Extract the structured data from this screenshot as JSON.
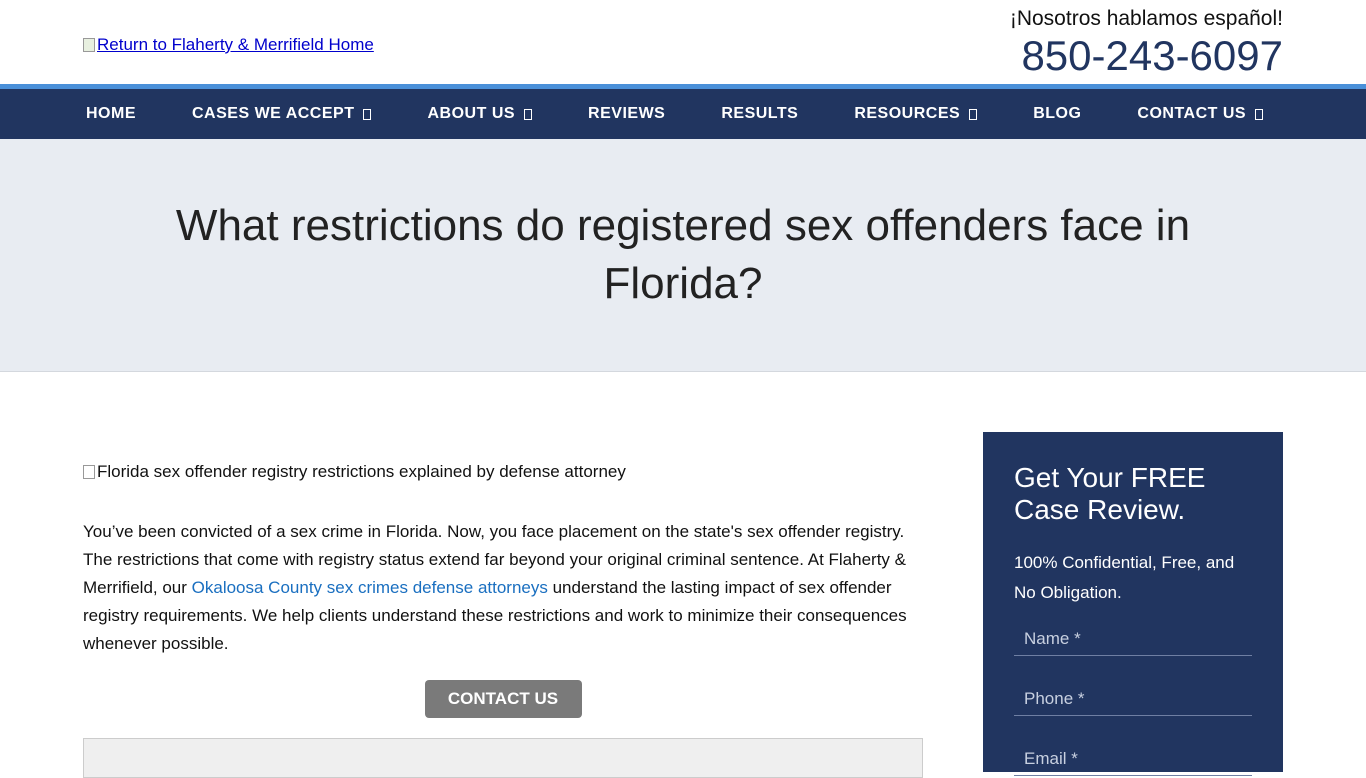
{
  "header": {
    "logo_alt": "Return to Flaherty & Merrifield Home",
    "spanish": "¡Nosotros hablamos español!",
    "phone": "850-243-6097"
  },
  "nav": [
    {
      "label": "HOME",
      "dropdown": false
    },
    {
      "label": "CASES WE ACCEPT",
      "dropdown": true
    },
    {
      "label": "ABOUT US",
      "dropdown": true
    },
    {
      "label": "REVIEWS",
      "dropdown": false
    },
    {
      "label": "RESULTS",
      "dropdown": false
    },
    {
      "label": "RESOURCES",
      "dropdown": true
    },
    {
      "label": "BLOG",
      "dropdown": false
    },
    {
      "label": "CONTACT US",
      "dropdown": true
    }
  ],
  "hero": {
    "title": "What restrictions do registered sex offenders face in Florida?"
  },
  "main": {
    "image_alt": "Florida sex offender registry restrictions explained by defense attorney",
    "para_before": "You’ve been convicted of a sex crime in Florida. Now, you face placement on the state's sex offender registry. The restrictions that come with registry status extend far beyond your original criminal sentence. At Flaherty & Merrifield, our ",
    "para_link": "Okaloosa County sex crimes defense attorneys",
    "para_after": " understand the lasting impact of sex offender registry requirements. We help clients understand these restrictions and work to minimize their consequences whenever possible.",
    "cta": "CONTACT US"
  },
  "sidebar": {
    "title": "Get Your FREE Case Review.",
    "subtitle": "100% Confidential, Free, and No Obligation.",
    "name_placeholder": "Name *",
    "phone_placeholder": "Phone *",
    "email_placeholder": "Email *"
  },
  "colors": {
    "navy": "#213560",
    "accent": "#4a90d9",
    "link": "#1a6fc0",
    "button": "#7a7a7a"
  }
}
